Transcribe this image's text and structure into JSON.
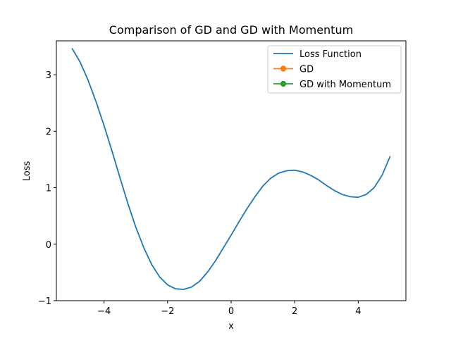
{
  "chart_data": {
    "type": "line",
    "title": "Comparison of GD and GD with Momentum",
    "xlabel": "x",
    "ylabel": "Loss",
    "xlim": [
      -5.5,
      5.5
    ],
    "ylim": [
      -1.0,
      3.6
    ],
    "xticks": [
      -4,
      -2,
      0,
      2,
      4
    ],
    "xtick_labels": [
      "−4",
      "−2",
      "0",
      "2",
      "4"
    ],
    "yticks": [
      -1,
      0,
      1,
      2,
      3
    ],
    "ytick_labels": [
      "−1",
      "0",
      "1",
      "2",
      "3"
    ],
    "grid": false,
    "legend_position": "top-right",
    "series": [
      {
        "name": "Loss Function",
        "color": "#1f77b4",
        "marker": "none",
        "x": [
          -5.0,
          -4.75,
          -4.5,
          -4.25,
          -4.0,
          -3.75,
          -3.5,
          -3.25,
          -3.0,
          -2.75,
          -2.5,
          -2.25,
          -2.0,
          -1.75,
          -1.5,
          -1.25,
          -1.0,
          -0.75,
          -0.5,
          -0.25,
          0.0,
          0.25,
          0.5,
          0.75,
          1.0,
          1.25,
          1.5,
          1.75,
          2.0,
          2.25,
          2.5,
          2.75,
          3.0,
          3.25,
          3.5,
          3.75,
          4.0,
          4.25,
          4.5,
          4.75,
          5.0
        ],
        "y": [
          3.46,
          3.22,
          2.9,
          2.52,
          2.1,
          1.65,
          1.18,
          0.72,
          0.3,
          -0.06,
          -0.36,
          -0.58,
          -0.72,
          -0.79,
          -0.8,
          -0.76,
          -0.66,
          -0.5,
          -0.3,
          -0.07,
          0.16,
          0.4,
          0.63,
          0.84,
          1.03,
          1.17,
          1.26,
          1.3,
          1.31,
          1.28,
          1.22,
          1.14,
          1.04,
          0.95,
          0.88,
          0.84,
          0.83,
          0.88,
          1.0,
          1.22,
          1.55
        ]
      },
      {
        "name": "GD",
        "color": "#ff7f0e",
        "marker": "circle",
        "x": [],
        "y": []
      },
      {
        "name": "GD with Momentum",
        "color": "#2ca02c",
        "marker": "circle",
        "x": [],
        "y": []
      }
    ]
  }
}
